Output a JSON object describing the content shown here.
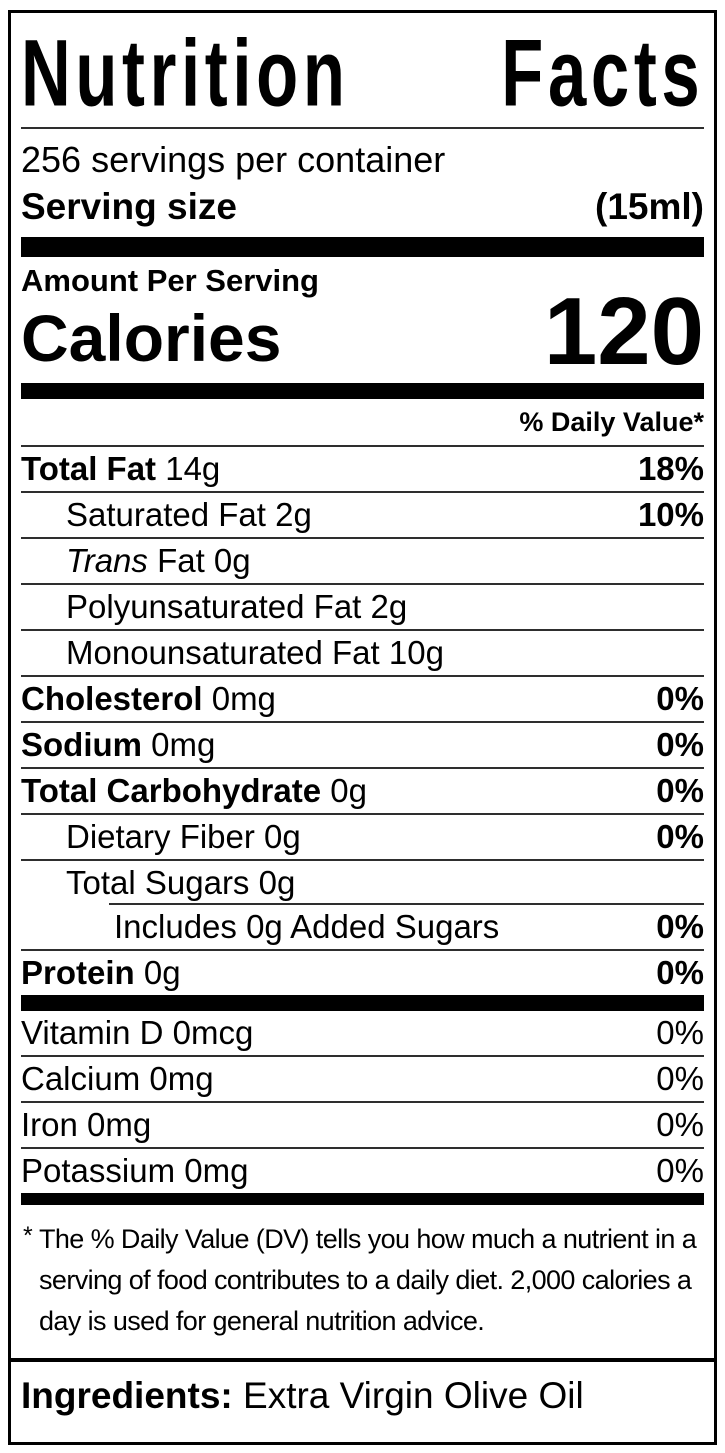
{
  "title": {
    "word1": "Nutrition",
    "word2": "Facts"
  },
  "header": {
    "servings_per_container": "256 servings per container",
    "serving_size_label": "Serving size",
    "serving_size_value": "(15ml)"
  },
  "calories": {
    "amount_per_serving_label": "Amount Per Serving",
    "label": "Calories",
    "value": "120"
  },
  "daily_value_header": "% Daily Value*",
  "nutrient_rows": [
    {
      "name": "Total Fat",
      "amount": "14g",
      "percent": "18%",
      "bold": true,
      "indent": 0
    },
    {
      "name": "Saturated Fat",
      "amount": "2g",
      "percent": "10%",
      "bold": false,
      "indent": 1
    },
    {
      "italic_prefix": "Trans",
      "name": "Fat",
      "amount": "0g",
      "percent": "",
      "bold": false,
      "indent": 1
    },
    {
      "name": "Polyunsaturated Fat",
      "amount": "2g",
      "percent": "",
      "bold": false,
      "indent": 1
    },
    {
      "name": "Monounsaturated Fat",
      "amount": "10g",
      "percent": "",
      "bold": false,
      "indent": 1
    },
    {
      "name": "Cholesterol",
      "amount": "0mg",
      "percent": "0%",
      "bold": true,
      "indent": 0
    },
    {
      "name": "Sodium",
      "amount": "0mg",
      "percent": "0%",
      "bold": true,
      "indent": 0
    },
    {
      "name": "Total Carbohydrate",
      "amount": "0g",
      "percent": "0%",
      "bold": true,
      "indent": 0
    },
    {
      "name": "Dietary Fiber",
      "amount": "0g",
      "percent": "0%",
      "bold": false,
      "indent": 1
    },
    {
      "name": "Total Sugars",
      "amount": "0g",
      "percent": "",
      "bold": false,
      "indent": 1
    },
    {
      "name": "Includes 0g Added Sugars",
      "amount": "",
      "percent": "0%",
      "bold": false,
      "indent": 2,
      "partial_rule": true
    },
    {
      "name": "Protein",
      "amount": "0g",
      "percent": "0%",
      "bold": true,
      "indent": 0
    }
  ],
  "vitamin_rows": [
    {
      "name": "Vitamin D",
      "amount": "0mcg",
      "percent": "0%"
    },
    {
      "name": "Calcium",
      "amount": "0mg",
      "percent": "0%"
    },
    {
      "name": "Iron",
      "amount": "0mg",
      "percent": "0%"
    },
    {
      "name": "Potassium",
      "amount": "0mg",
      "percent": "0%"
    }
  ],
  "footnote": {
    "marker": "*",
    "lines": [
      "The % Daily Value (DV) tells you how much a nutrient in a",
      "serving of food contributes to a daily diet. 2,000 calories a",
      "day is used for general nutrition advice."
    ]
  },
  "ingredients": {
    "label": "Ingredients:",
    "value": "Extra Virgin Olive Oil"
  },
  "colors": {
    "background": "#ffffff",
    "text": "#000000",
    "rule": "#2e2e2e",
    "bar": "#000000"
  }
}
